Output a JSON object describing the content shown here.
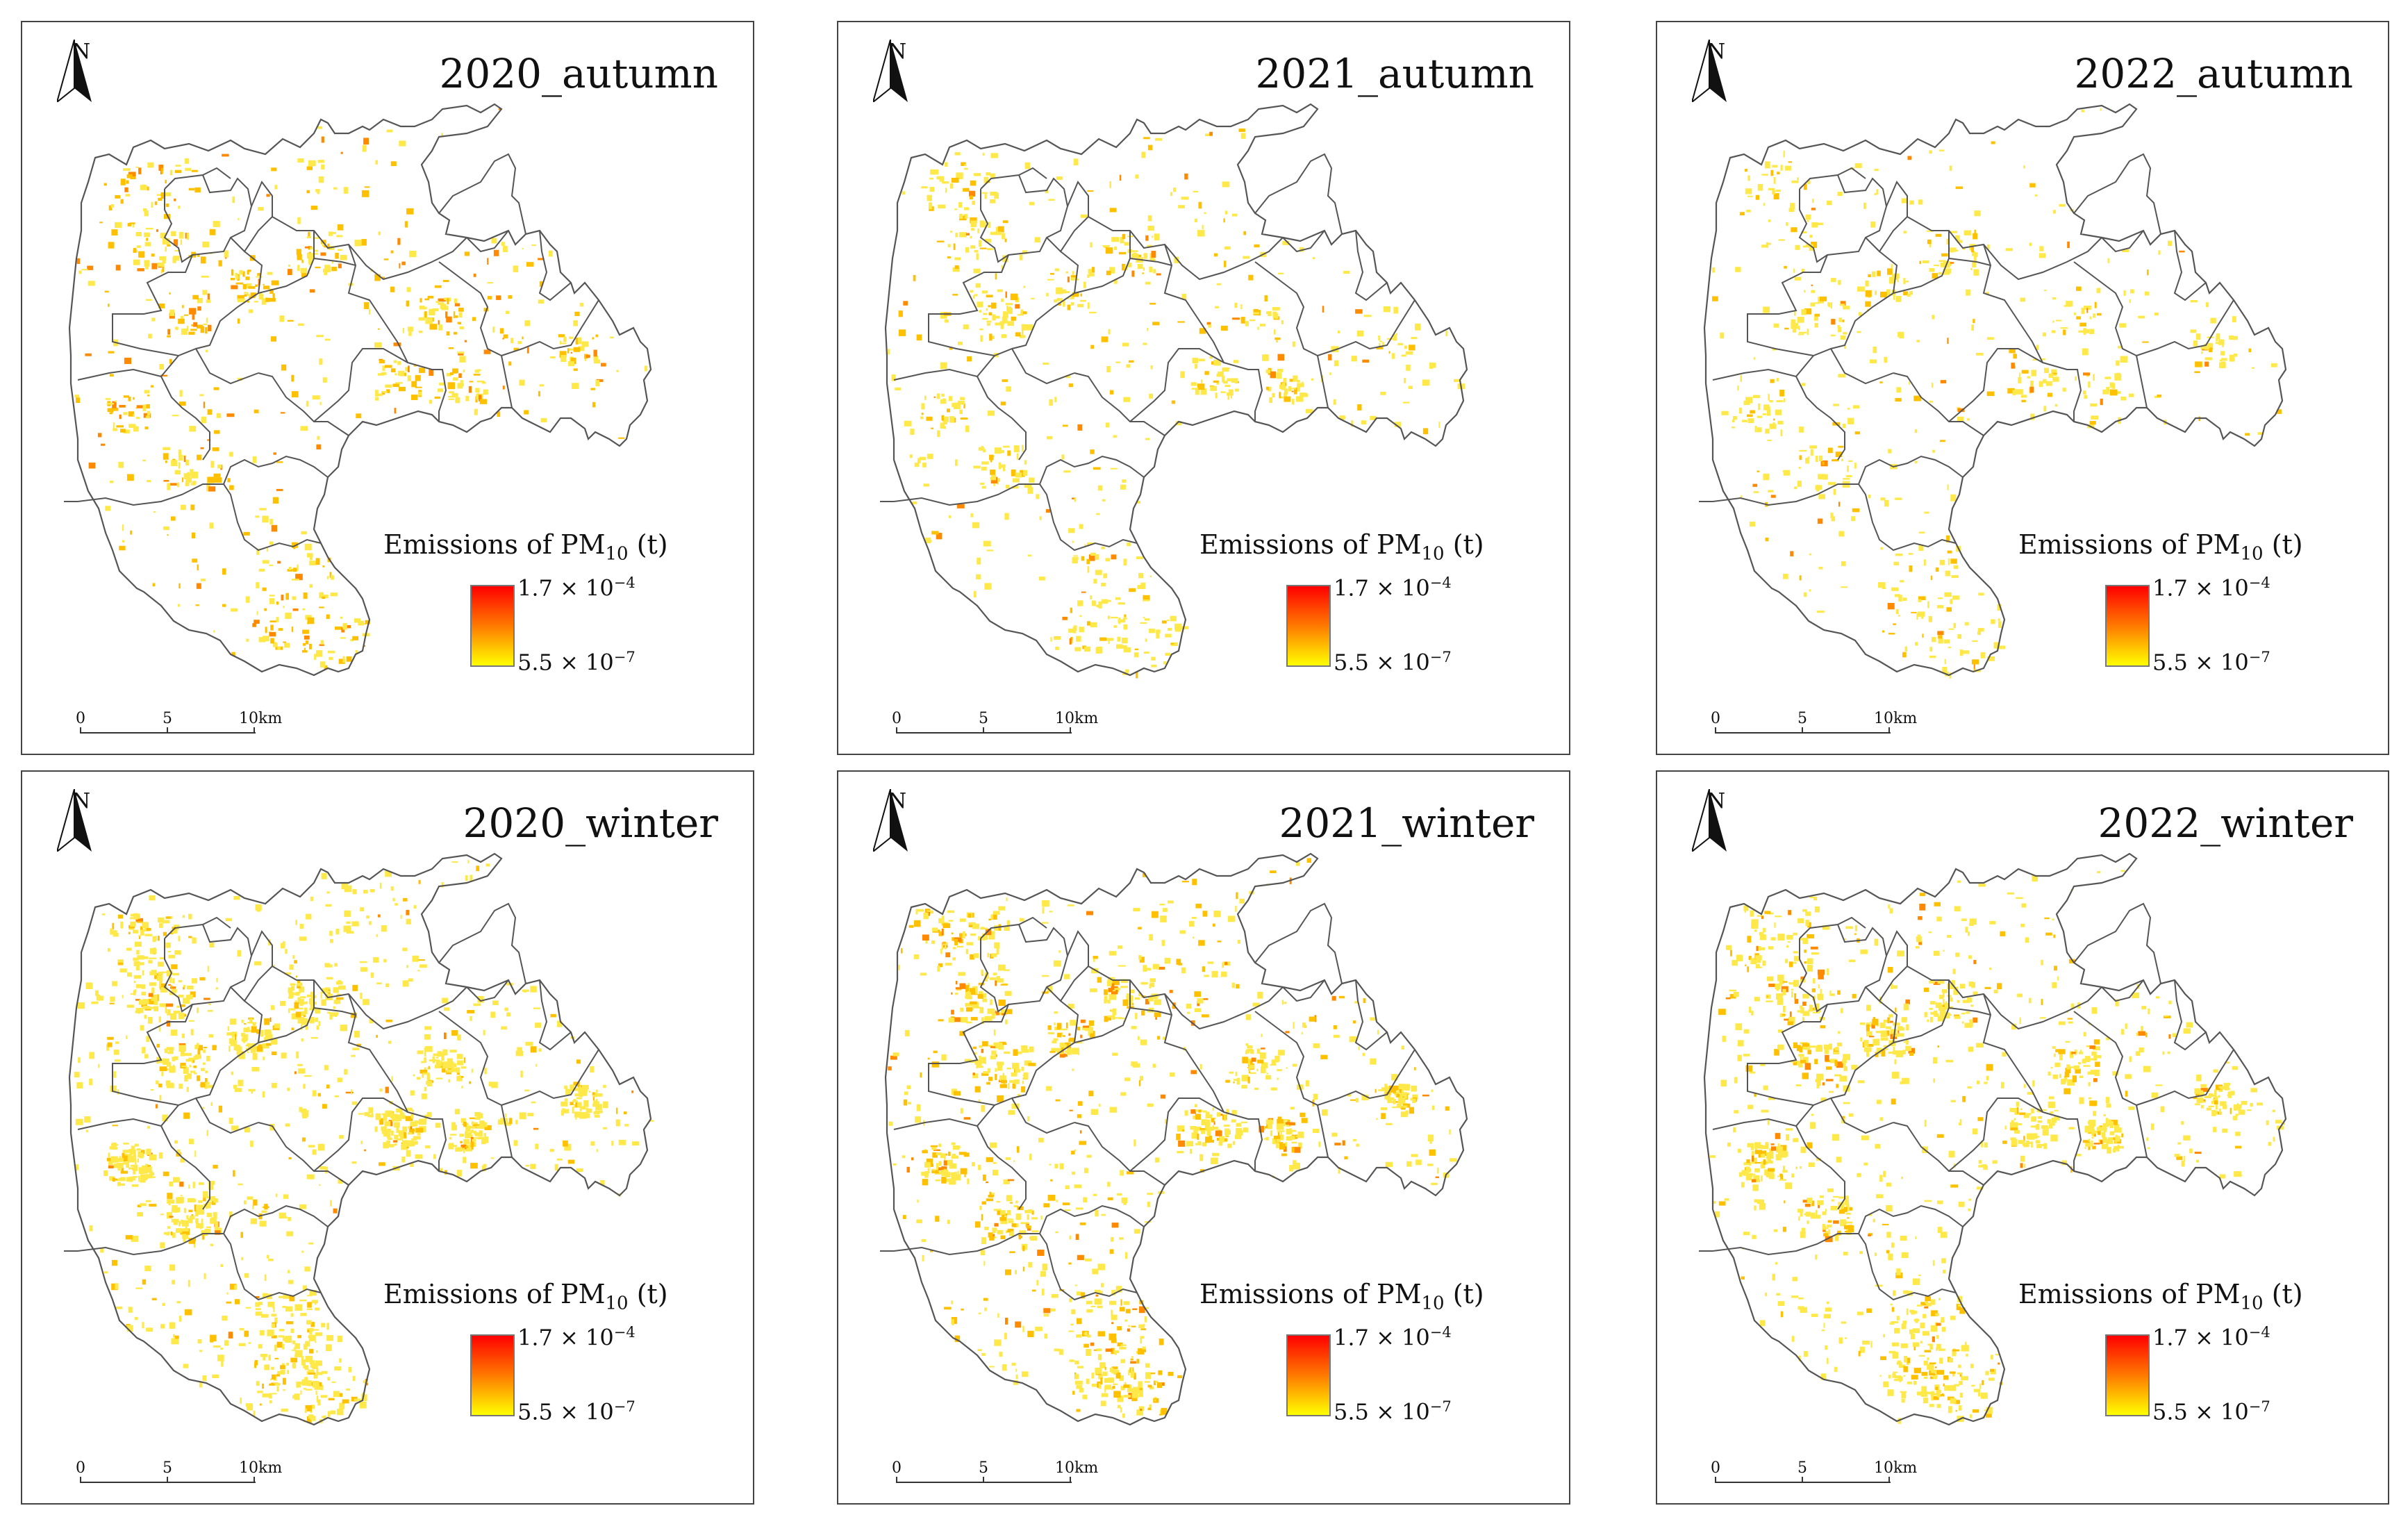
{
  "panels": [
    {
      "title": "2020_autumn",
      "season": "autumn",
      "density": 0.55,
      "warmth": 0.55
    },
    {
      "title": "2021_autumn",
      "season": "autumn",
      "density": 0.5,
      "warmth": 0.2
    },
    {
      "title": "2022_autumn",
      "season": "autumn",
      "density": 0.42,
      "warmth": 0.15
    },
    {
      "title": "2020_winter",
      "season": "winter",
      "density": 1.0,
      "warmth": 0.1
    },
    {
      "title": "2021_winter",
      "season": "winter",
      "density": 0.85,
      "warmth": 0.35
    },
    {
      "title": "2022_winter",
      "season": "winter",
      "density": 0.85,
      "warmth": 0.2
    }
  ],
  "north_label": "N",
  "legend": {
    "title_prefix": "Emissions of PM",
    "title_sub": "10",
    "title_suffix": " (t)",
    "max_base": "1.7 × 10",
    "max_exp": "−4",
    "min_base": "5.5 × 10",
    "min_exp": "−7",
    "color_high": "#ff0000",
    "color_mid": "#ff7a00",
    "color_low": "#ffff00"
  },
  "scale_bar": {
    "labels": [
      "0",
      "5",
      "10km"
    ]
  },
  "colors": {
    "boundary": "#555555",
    "emission_light": "#ffe94a",
    "emission_mid": "#ffc000",
    "emission_hot": "#ff8a00"
  }
}
